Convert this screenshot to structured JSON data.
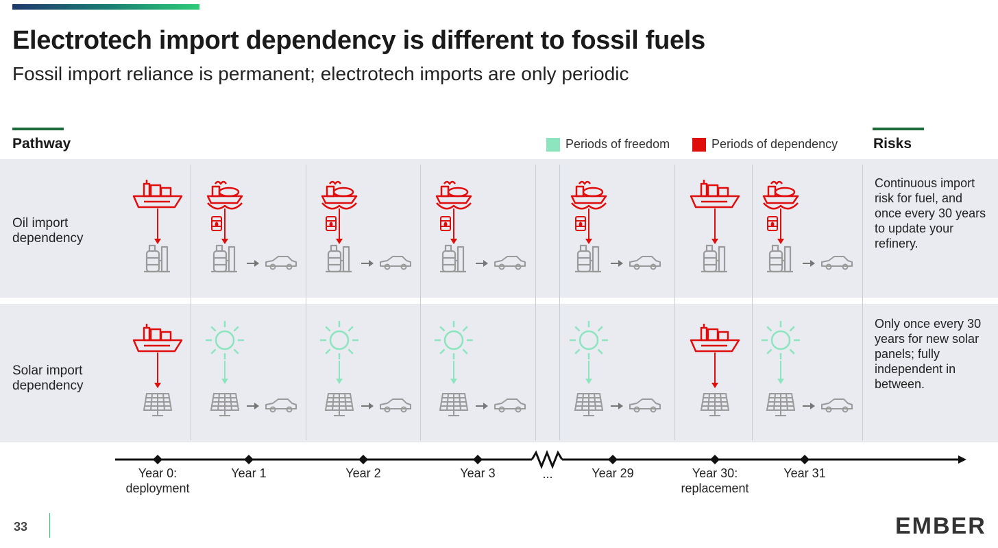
{
  "title": "Electrotech import dependency is different to fossil fuels",
  "subtitle": "Fossil import reliance is permanent; electrotech imports are only periodic",
  "pathway_heading": "Pathway",
  "risks_heading": "Risks",
  "legend": {
    "freedom_label": "Periods of freedom",
    "dependency_label": "Periods of dependency"
  },
  "colors": {
    "freedom": "#8de5c0",
    "dependency": "#e00d0d",
    "neutral_icon": "#9a9a9a",
    "band": "#e9ebf0",
    "accent_green": "#1d6b3a"
  },
  "rows": {
    "oil": {
      "label": "Oil import dependency",
      "risk": "Continuous import risk for fuel, and once every 30 years to update your refinery."
    },
    "solar": {
      "label": "Solar import dependency",
      "risk": "Only once every 30 years for new solar panels; fully independent in between."
    }
  },
  "timeline": {
    "years": [
      {
        "label_line1": "Year 0:",
        "label_line2": "deployment"
      },
      {
        "label_line1": "Year 1",
        "label_line2": ""
      },
      {
        "label_line1": "Year 2",
        "label_line2": ""
      },
      {
        "label_line1": "Year 3",
        "label_line2": ""
      },
      {
        "label_line1": "Year 29",
        "label_line2": ""
      },
      {
        "label_line1": "Year 30:",
        "label_line2": "replacement"
      },
      {
        "label_line1": "Year 31",
        "label_line2": ""
      }
    ],
    "break_label": "..."
  },
  "columns": [
    {
      "oil_source": "container-ship-icon",
      "oil_status": "dependency",
      "solar_source": "container-ship-icon",
      "solar_status": "dependency",
      "shows_car": false
    },
    {
      "oil_source": "tanker-ship-icon",
      "oil_status": "dependency",
      "solar_source": "sun-icon",
      "solar_status": "freedom",
      "shows_car": true
    },
    {
      "oil_source": "tanker-ship-icon",
      "oil_status": "dependency",
      "solar_source": "sun-icon",
      "solar_status": "freedom",
      "shows_car": true
    },
    {
      "oil_source": "tanker-ship-icon",
      "oil_status": "dependency",
      "solar_source": "sun-icon",
      "solar_status": "freedom",
      "shows_car": true
    },
    {
      "oil_source": "tanker-ship-icon",
      "oil_status": "dependency",
      "solar_source": "sun-icon",
      "solar_status": "freedom",
      "shows_car": true
    },
    {
      "oil_source": "container-ship-icon",
      "oil_status": "dependency",
      "solar_source": "container-ship-icon",
      "solar_status": "dependency",
      "shows_car": false
    },
    {
      "oil_source": "tanker-ship-icon",
      "oil_status": "dependency",
      "solar_source": "sun-icon",
      "solar_status": "freedom",
      "shows_car": true
    }
  ],
  "page_number": "33",
  "logo_text": "EMBER"
}
